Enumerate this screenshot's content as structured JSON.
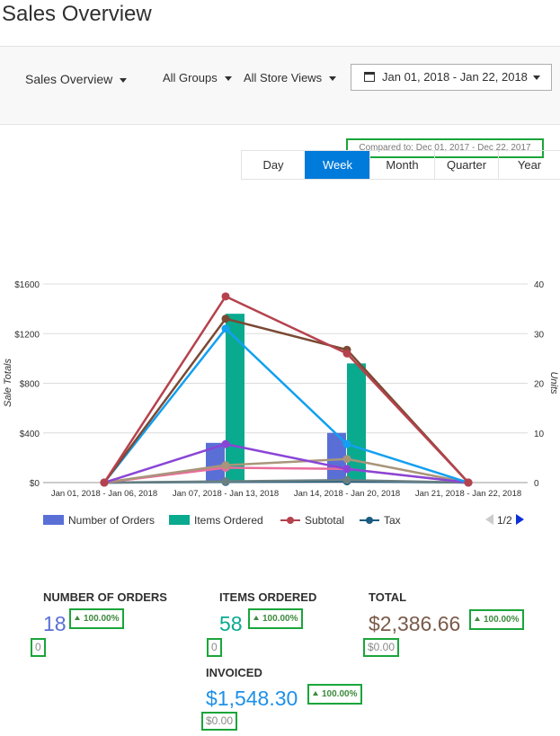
{
  "page": {
    "title": "Sales Overview"
  },
  "filters": {
    "main_dropdown": "Sales Overview",
    "groups": "All Groups",
    "stores": "All Store Views",
    "date_range": "Jan 01, 2018 - Jan 22, 2018",
    "compared_to": "Compared to: Dec 01, 2017 - Dec 22, 2017"
  },
  "period_tabs": [
    {
      "label": "Day",
      "active": false
    },
    {
      "label": "Week",
      "active": true
    },
    {
      "label": "Month",
      "active": false
    },
    {
      "label": "Quarter",
      "active": false
    },
    {
      "label": "Year",
      "active": false
    }
  ],
  "colors": {
    "accent": "#007bdb",
    "orders": "#5a6fd6",
    "items": "#0aaa8f",
    "subtotal": "#b5424d",
    "tax": "#1a5c82",
    "highlight_border": "#1aa53a"
  },
  "chart_data": {
    "type": "bar+line",
    "categories": [
      "Jan 01, 2018 - Jan 06, 2018",
      "Jan 07, 2018 - Jan 13, 2018",
      "Jan 14, 2018 - Jan 20, 2018",
      "Jan 21, 2018 - Jan 22, 2018"
    ],
    "ylabel": "Sale Totals",
    "ylabel_right": "Units",
    "y_ticks": [
      "$0",
      "$400",
      "$800",
      "$1200",
      "$1600"
    ],
    "y_right_ticks": [
      "0",
      "10",
      "20",
      "30",
      "40"
    ],
    "ylim": [
      0,
      1600
    ],
    "ylim_right": [
      0,
      40
    ],
    "bar_series": [
      {
        "name": "Number of Orders",
        "color": "#5a6fd6",
        "values": [
          0,
          8,
          10,
          0
        ]
      },
      {
        "name": "Items Ordered",
        "color": "#0aaa8f",
        "values": [
          0,
          34,
          24,
          0
        ]
      }
    ],
    "line_series": [
      {
        "name": "Subtotal",
        "color": "#b5424d",
        "values": [
          0,
          1500,
          1040,
          0
        ]
      },
      {
        "name": "",
        "color": "#7a4a34",
        "values": [
          0,
          1320,
          1070,
          0
        ]
      },
      {
        "name": "",
        "color": "#13a0f0",
        "values": [
          0,
          1240,
          310,
          0
        ]
      },
      {
        "name": "",
        "color": "#8a45d6",
        "values": [
          0,
          310,
          110,
          0
        ]
      },
      {
        "name": "",
        "color": "#a8957a",
        "values": [
          0,
          140,
          190,
          0
        ]
      },
      {
        "name": "",
        "color": "#ea6c9a",
        "values": [
          0,
          120,
          110,
          0
        ]
      },
      {
        "name": "",
        "color": "#6a7f82",
        "values": [
          0,
          10,
          20,
          0
        ]
      },
      {
        "name": "Tax",
        "color": "#1a5c82",
        "values": [
          0,
          5,
          10,
          0
        ]
      }
    ],
    "legend": [
      {
        "name": "Number of Orders",
        "kind": "bar",
        "color": "#5a6fd6"
      },
      {
        "name": "Items Ordered",
        "kind": "bar",
        "color": "#0aaa8f"
      },
      {
        "name": "Subtotal",
        "kind": "line",
        "color": "#b5424d"
      },
      {
        "name": "Tax",
        "kind": "line",
        "color": "#1a5c82"
      }
    ],
    "legend_page": "1/2",
    "legend_position": "bottom",
    "grid": true
  },
  "totals": {
    "orders": {
      "label": "NUMBER OF ORDERS",
      "value": "18",
      "change": "100.00%",
      "previous": "0",
      "color": "#5a6fd6"
    },
    "items": {
      "label": "ITEMS ORDERED",
      "value": "58",
      "change": "100.00%",
      "previous": "0",
      "color": "#0aaa8f"
    },
    "total": {
      "label": "TOTAL",
      "value": "$2,386.66",
      "change": "100.00%",
      "previous": "$0.00",
      "color": "#7a5a4a"
    },
    "invoiced": {
      "label": "INVOICED",
      "value": "$1,548.30",
      "change": "100.00%",
      "previous": "$0.00",
      "color": "#1e90e8"
    }
  }
}
